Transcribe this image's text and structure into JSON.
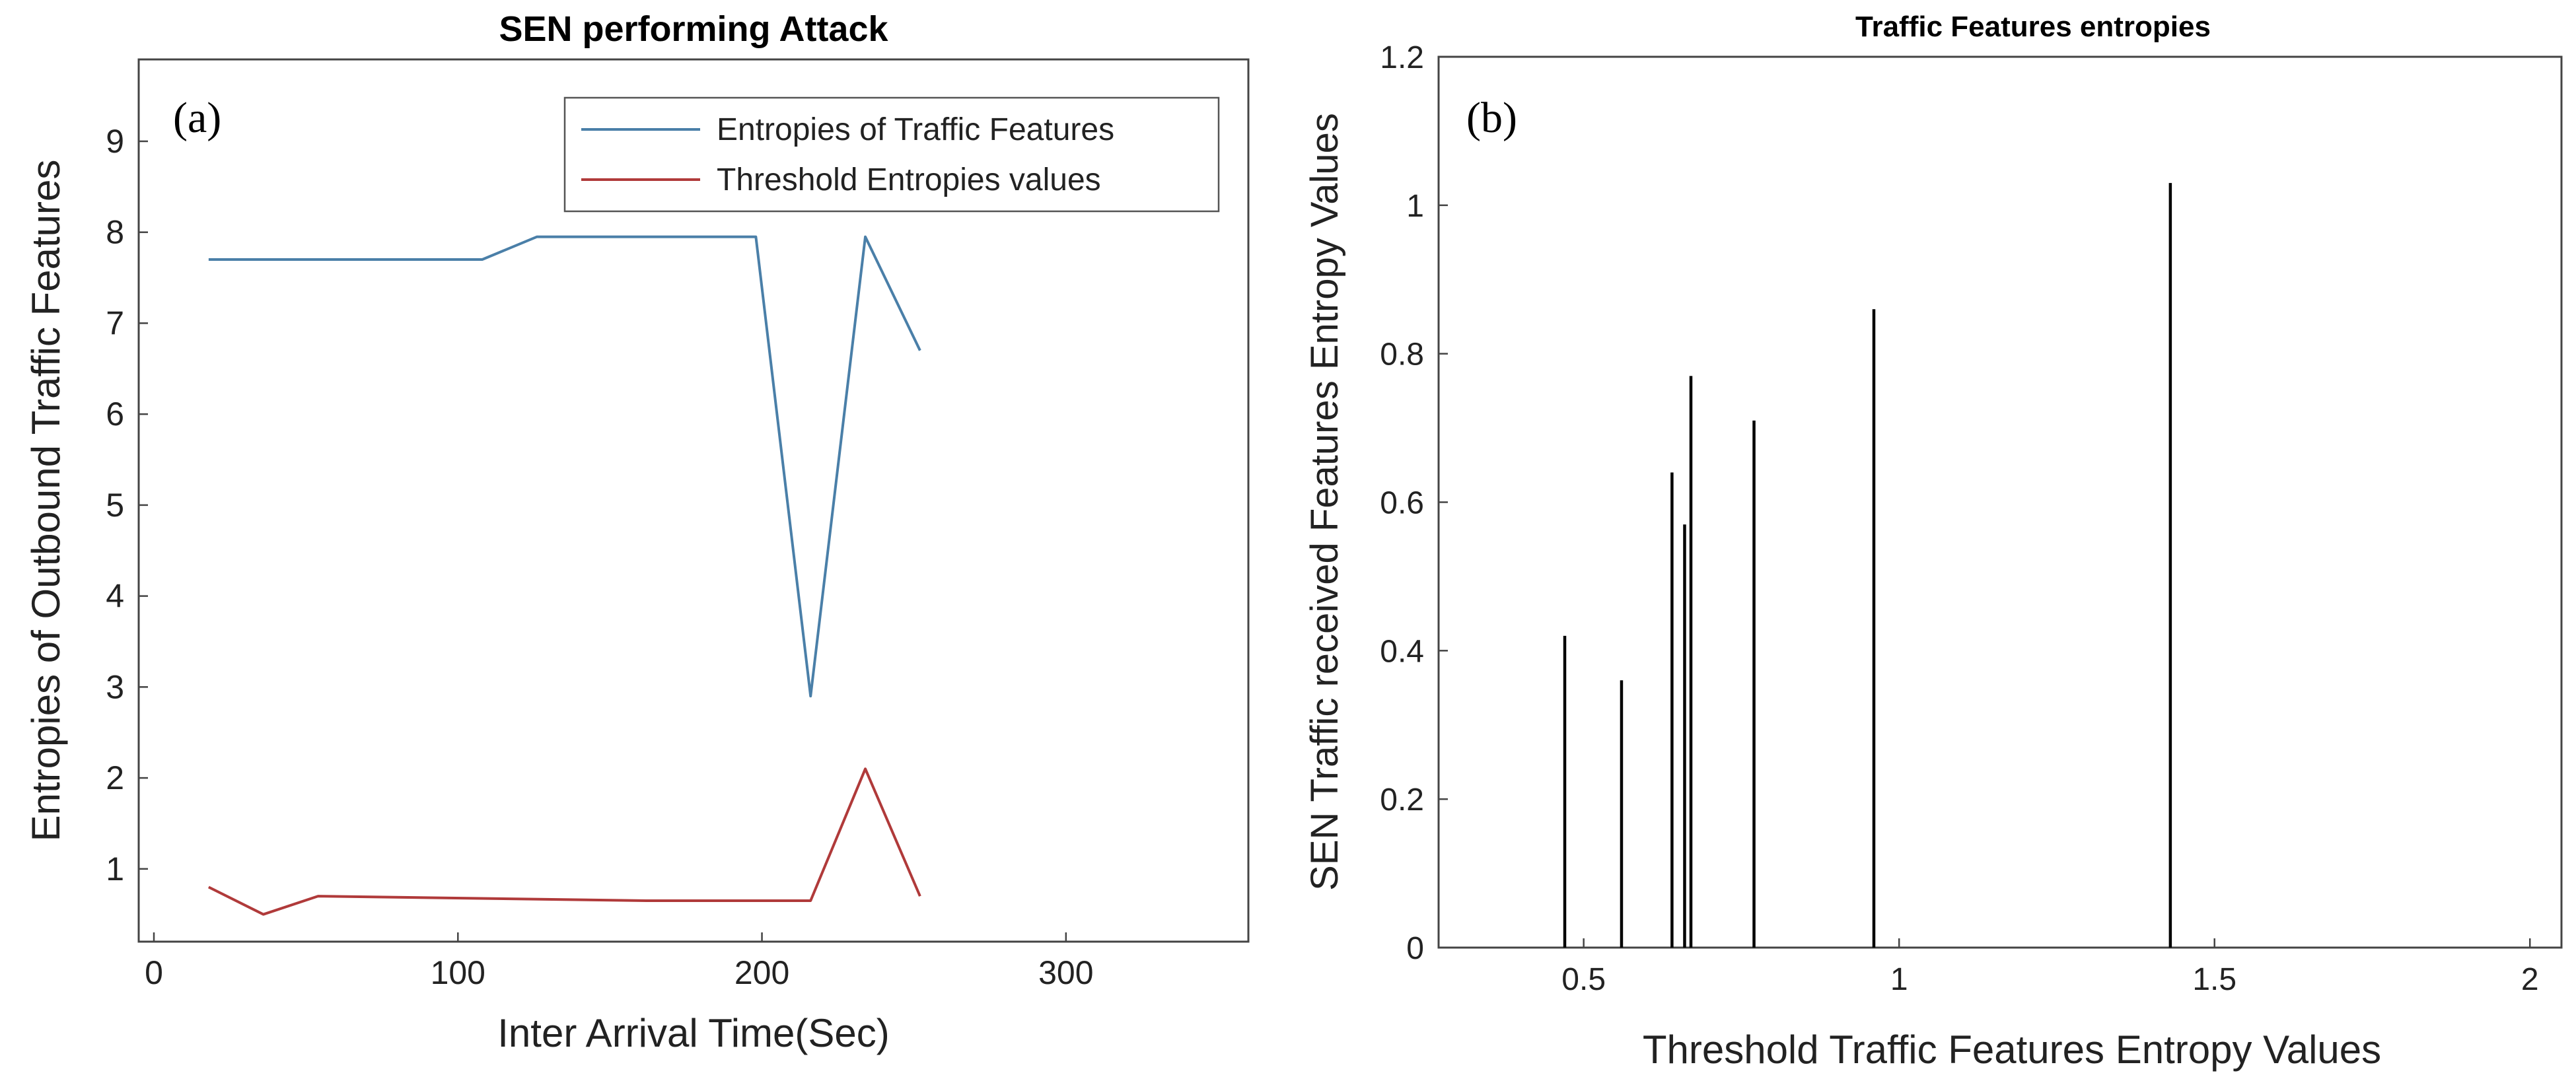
{
  "chart_data": [
    {
      "type": "line",
      "panel_label": "(a)",
      "title": "SEN performing Attack",
      "xlabel": "Inter Arrival Time(Sec)",
      "ylabel": "Entropies of Outbound Traffic Features",
      "xlim": [
        -5,
        360
      ],
      "ylim": [
        0.2,
        9.9
      ],
      "xticks": [
        0,
        100,
        200,
        300
      ],
      "yticks": [
        1,
        2,
        3,
        4,
        5,
        6,
        7,
        8,
        9
      ],
      "grid": false,
      "legend_position": "top-right",
      "series": [
        {
          "name": "Entropies of Traffic Features",
          "color": "#4a7fa8",
          "x": [
            18,
            108,
            126,
            198,
            216,
            234,
            252
          ],
          "y": [
            7.7,
            7.7,
            7.95,
            7.95,
            2.9,
            7.95,
            6.7
          ]
        },
        {
          "name": "Threshold Entropies values",
          "color": "#b03a3a",
          "x": [
            18,
            36,
            54,
            162,
            216,
            234,
            252
          ],
          "y": [
            0.8,
            0.5,
            0.7,
            0.65,
            0.65,
            2.1,
            0.7
          ]
        }
      ]
    },
    {
      "type": "bar",
      "panel_label": "(b)",
      "title": "Traffic Features entropies",
      "xlabel": "Threshold Traffic Features Entropy Values",
      "ylabel": "SEN Traffic received Features Entropy Values",
      "xlim": [
        0.27,
        2.05
      ],
      "ylim": [
        0,
        1.2
      ],
      "xticks": [
        0.5,
        1,
        1.5,
        2
      ],
      "yticks": [
        0,
        0.2,
        0.4,
        0.6,
        0.8,
        1,
        1.2
      ],
      "grid": false,
      "color": "#000000",
      "x": [
        0.47,
        0.56,
        0.64,
        0.66,
        0.67,
        0.77,
        0.96,
        1.43
      ],
      "values": [
        0.42,
        0.36,
        0.64,
        0.57,
        0.77,
        0.71,
        0.86,
        1.03
      ]
    }
  ]
}
